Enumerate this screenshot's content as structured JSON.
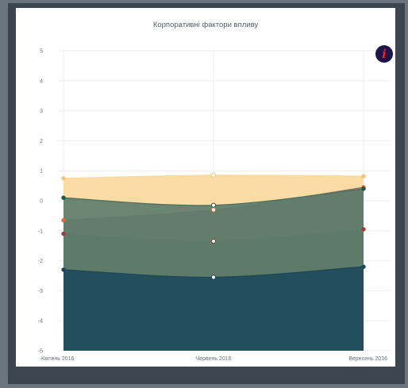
{
  "chart_data": {
    "type": "area",
    "title": "Корпоративні фактори впливу",
    "categories": [
      "Квітень 2016",
      "Червень 2016",
      "Вересень 2016"
    ],
    "y_ticks": [
      "5",
      "4",
      "3",
      "2",
      "1",
      "0",
      "-1",
      "-2",
      "-3",
      "-4",
      "-5"
    ],
    "ylim": [
      -5,
      5
    ],
    "grid": true,
    "smooth": true,
    "fill_to": -5,
    "series": [
      {
        "values": [
          0.75,
          0.85,
          0.82
        ],
        "fill": "#f8d99b",
        "line": "#f8d99b",
        "point": "#f0c67a"
      },
      {
        "values": [
          -0.65,
          -0.3,
          0.45
        ],
        "fill": "#9d7a6a",
        "line": "#9d7a6a",
        "point": "#e06a3a"
      },
      {
        "values": [
          -1.1,
          -1.35,
          -0.95
        ],
        "fill": "#5e6b4e",
        "line": "#5e6b4e",
        "point": "#a33a3a"
      },
      {
        "values": [
          0.1,
          -0.15,
          0.4
        ],
        "fill": "#5d7d6c",
        "line": "#4b6e5e",
        "point": "#1a5a45"
      },
      {
        "values": [
          -2.3,
          -2.55,
          -2.2
        ],
        "fill": "#1f4a5b",
        "line": "#1d4757",
        "point": "#1d4757"
      }
    ]
  }
}
